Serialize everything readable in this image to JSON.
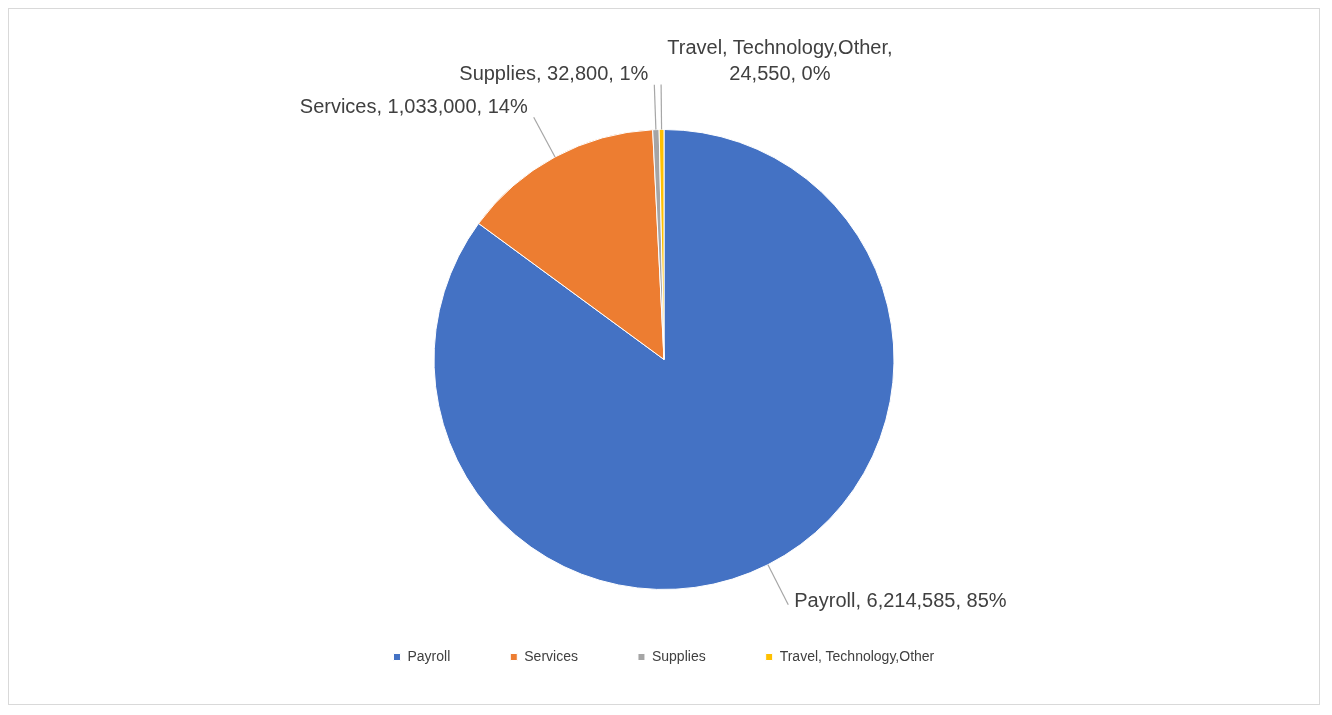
{
  "chart_data": {
    "type": "pie",
    "categories": [
      "Payroll",
      "Services",
      "Supplies",
      "Travel, Technology,Other"
    ],
    "values": [
      6214585,
      1033000,
      32800,
      24550
    ],
    "colors": [
      "#4472c4",
      "#ed7d31",
      "#a5a5a5",
      "#ffc000"
    ],
    "value_labels": [
      "Payroll, 6,214,585, 85%",
      "Services, 1,033,000, 14%",
      "Supplies, 32,800, 1%",
      "Travel, Technology,Other, 24,550, 0%"
    ],
    "legend": "bottom"
  }
}
